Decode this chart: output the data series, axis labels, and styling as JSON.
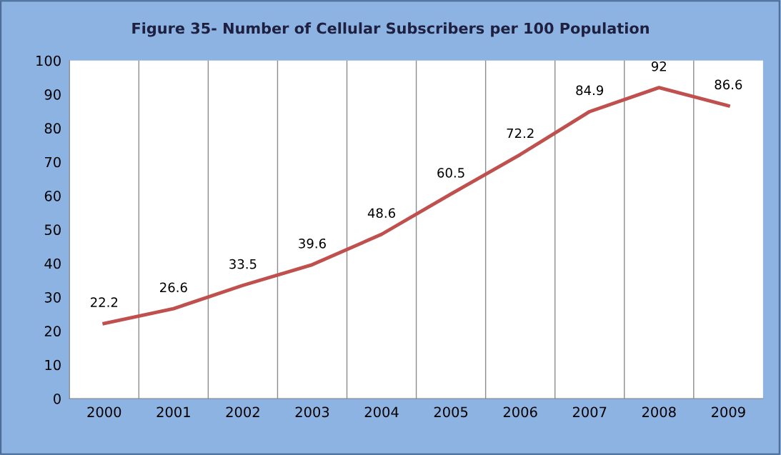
{
  "chart_data": {
    "type": "line",
    "title": "Figure 35- Number of Cellular Subscribers per 100 Population",
    "categories": [
      "2000",
      "2001",
      "2002",
      "2003",
      "2004",
      "2005",
      "2006",
      "2007",
      "2008",
      "2009"
    ],
    "series": [
      {
        "color": "#c0504d",
        "values": [
          22.2,
          26.6,
          33.5,
          39.6,
          48.6,
          60.5,
          72.2,
          84.9,
          92,
          86.6
        ]
      }
    ],
    "ylim": [
      0,
      100
    ],
    "yticks": [
      0,
      10,
      20,
      30,
      40,
      50,
      60,
      70,
      80,
      90,
      100
    ],
    "grid": "x",
    "data_labels": true,
    "marker": "none",
    "line_style": "solid",
    "legend": false
  }
}
